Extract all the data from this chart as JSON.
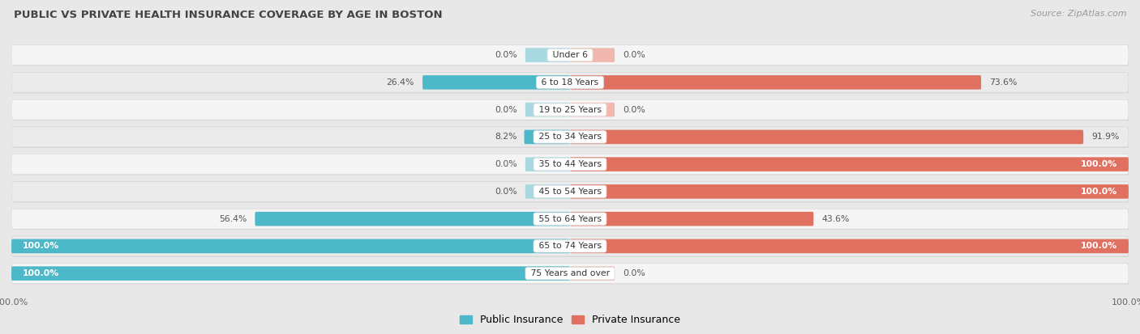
{
  "title": "PUBLIC VS PRIVATE HEALTH INSURANCE COVERAGE BY AGE IN BOSTON",
  "source": "Source: ZipAtlas.com",
  "categories": [
    "Under 6",
    "6 to 18 Years",
    "19 to 25 Years",
    "25 to 34 Years",
    "35 to 44 Years",
    "45 to 54 Years",
    "55 to 64 Years",
    "65 to 74 Years",
    "75 Years and over"
  ],
  "public": [
    0.0,
    26.4,
    0.0,
    8.2,
    0.0,
    0.0,
    56.4,
    100.0,
    100.0
  ],
  "private": [
    0.0,
    73.6,
    0.0,
    91.9,
    100.0,
    100.0,
    43.6,
    100.0,
    0.0
  ],
  "public_color": "#4db8c8",
  "private_color": "#e07060",
  "public_color_light": "#a8d8e0",
  "private_color_light": "#f0b8b0",
  "bg_color": "#e8e8e8",
  "row_color_even": "#f5f5f5",
  "row_color_odd": "#ebebeb",
  "title_color": "#444444",
  "source_color": "#999999",
  "label_color_dark": "#555555",
  "label_color_white": "#ffffff",
  "xlim": 100.0,
  "legend_public": "Public Insurance",
  "legend_private": "Private Insurance",
  "stub_size": 8.0
}
